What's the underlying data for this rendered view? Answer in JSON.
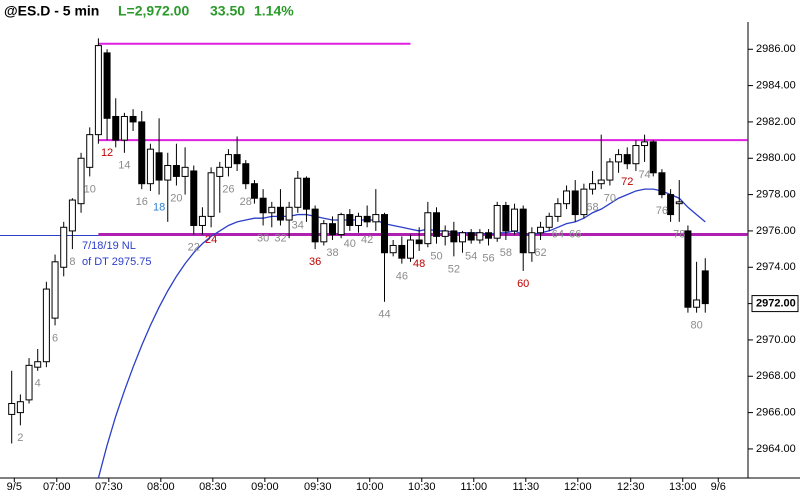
{
  "chart_data": {
    "type": "candlestick",
    "header": {
      "symbol": "@ES.D - 5 min",
      "last": "L=2,972.00",
      "change": "33.50",
      "change_pct": "1.14%"
    },
    "x": [
      1,
      2,
      3,
      4,
      5,
      6,
      7,
      8,
      9,
      10,
      11,
      12,
      13,
      14,
      15,
      16,
      17,
      18,
      19,
      20,
      21,
      22,
      23,
      24,
      25,
      26,
      27,
      28,
      29,
      30,
      31,
      32,
      33,
      34,
      35,
      36,
      37,
      38,
      39,
      40,
      41,
      42,
      43,
      44,
      45,
      46,
      47,
      48,
      49,
      50,
      51,
      52,
      53,
      54,
      55,
      56,
      57,
      58,
      59,
      60,
      61,
      62,
      63,
      64,
      65,
      66,
      67,
      68,
      69,
      70,
      71,
      72,
      73,
      74,
      75,
      76,
      77,
      78,
      79,
      80,
      81
    ],
    "open": [
      2965.9,
      2966.0,
      2966.7,
      2968.5,
      2968.8,
      2971.2,
      2974.0,
      2976.0,
      2977.5,
      2979.5,
      2981.3,
      2985.8,
      2982.3,
      2981.0,
      2982.3,
      2982.0,
      2978.6,
      2980.3,
      2978.8,
      2979.6,
      2979.0,
      2979.3,
      2976.3,
      2976.8,
      2979.0,
      2979.5,
      2980.2,
      2979.7,
      2978.6,
      2977.8,
      2977.0,
      2977.3,
      2976.6,
      2977.3,
      2978.9,
      2977.2,
      2975.4,
      2976.4,
      2975.8,
      2976.9,
      2976.3,
      2976.8,
      2976.5,
      2976.9,
      2974.8,
      2975.2,
      2974.5,
      2975.5,
      2975.3,
      2977.0,
      2975.7,
      2976.0,
      2975.4,
      2975.9,
      2975.5,
      2975.9,
      2975.6,
      2977.4,
      2976.0,
      2977.2,
      2974.8,
      2975.9,
      2976.2,
      2976.8,
      2977.5,
      2978.2,
      2976.9,
      2978.3,
      2978.6,
      2978.8,
      2979.8,
      2980.2,
      2979.7,
      2980.7,
      2980.9,
      2979.2,
      2978.0,
      2977.5,
      2976.0,
      2971.8,
      2973.8
    ],
    "high": [
      2968.3,
      2967.0,
      2969.0,
      2969.5,
      2973.2,
      2974.7,
      2976.5,
      2977.8,
      2980.3,
      2981.7,
      2986.6,
      2986.0,
      2983.3,
      2982.5,
      2982.7,
      2982.6,
      2980.8,
      2982.2,
      2980.3,
      2980.8,
      2980.6,
      2979.6,
      2977.3,
      2979.5,
      2979.8,
      2980.5,
      2981.2,
      2979.9,
      2978.8,
      2978.3,
      2977.6,
      2978.3,
      2977.6,
      2979.3,
      2979.0,
      2977.4,
      2976.6,
      2976.8,
      2977.0,
      2977.2,
      2977.0,
      2977.4,
      2978.3,
      2977.0,
      2975.5,
      2975.7,
      2975.8,
      2976.2,
      2977.6,
      2977.3,
      2976.3,
      2976.5,
      2976.0,
      2976.1,
      2976.1,
      2976.1,
      2977.6,
      2977.6,
      2977.5,
      2977.4,
      2976.2,
      2976.5,
      2977.0,
      2977.8,
      2978.5,
      2978.8,
      2978.6,
      2979.3,
      2981.3,
      2980.0,
      2980.5,
      2980.6,
      2981.0,
      2981.3,
      2981.0,
      2979.4,
      2978.3,
      2978.8,
      2976.3,
      2974.3,
      2974.5
    ],
    "low": [
      2964.3,
      2965.3,
      2966.5,
      2968.3,
      2968.5,
      2970.8,
      2973.5,
      2975.0,
      2977.0,
      2979.0,
      2980.8,
      2981.0,
      2980.6,
      2980.3,
      2981.5,
      2978.3,
      2978.2,
      2978.0,
      2976.5,
      2978.5,
      2978.0,
      2975.8,
      2975.8,
      2976.2,
      2977.0,
      2979.0,
      2979.3,
      2978.3,
      2977.5,
      2976.3,
      2976.2,
      2976.3,
      2975.6,
      2977.0,
      2976.5,
      2975.0,
      2975.2,
      2975.5,
      2975.6,
      2976.0,
      2975.9,
      2976.2,
      2976.0,
      2972.1,
      2974.6,
      2974.2,
      2974.3,
      2974.9,
      2975.1,
      2975.3,
      2975.2,
      2974.6,
      2974.8,
      2975.3,
      2975.3,
      2975.2,
      2975.4,
      2975.5,
      2975.8,
      2973.8,
      2974.3,
      2975.5,
      2976.0,
      2976.5,
      2977.2,
      2976.5,
      2976.7,
      2978.0,
      2978.3,
      2978.5,
      2979.2,
      2979.4,
      2979.3,
      2979.8,
      2979.0,
      2977.8,
      2976.5,
      2976.5,
      2971.5,
      2971.5,
      2971.5
    ],
    "close": [
      2966.5,
      2966.6,
      2968.6,
      2968.8,
      2972.8,
      2974.3,
      2976.2,
      2977.7,
      2980.0,
      2981.3,
      2986.2,
      2982.2,
      2981.0,
      2982.3,
      2982.0,
      2978.6,
      2980.5,
      2978.8,
      2979.6,
      2979.0,
      2979.5,
      2976.3,
      2976.8,
      2979.2,
      2979.5,
      2980.2,
      2979.7,
      2978.6,
      2977.8,
      2977.0,
      2977.3,
      2976.6,
      2977.3,
      2978.9,
      2977.2,
      2975.4,
      2976.4,
      2975.8,
      2976.9,
      2976.3,
      2976.8,
      2976.5,
      2976.9,
      2974.8,
      2975.2,
      2974.5,
      2975.5,
      2975.3,
      2977.0,
      2975.7,
      2976.0,
      2975.4,
      2975.9,
      2975.5,
      2975.9,
      2975.6,
      2977.4,
      2976.0,
      2977.2,
      2974.8,
      2975.9,
      2976.2,
      2976.8,
      2977.5,
      2978.2,
      2976.9,
      2978.3,
      2978.6,
      2978.8,
      2979.8,
      2980.2,
      2979.7,
      2980.7,
      2980.9,
      2979.2,
      2978.0,
      2976.9,
      2977.6,
      2971.8,
      2972.2,
      2972.0
    ],
    "ema": {
      "color": "#2b3fc8",
      "values": [
        null,
        null,
        null,
        null,
        null,
        null,
        null,
        null,
        null,
        null,
        2962.4,
        2964.2,
        2965.8,
        2967.2,
        2968.5,
        2969.7,
        2970.8,
        2971.8,
        2972.7,
        2973.5,
        2974.2,
        2974.8,
        2975.3,
        2975.7,
        2976.0,
        2976.3,
        2976.5,
        2976.6,
        2976.7,
        2976.7,
        2976.8,
        2976.8,
        2976.8,
        2976.9,
        2976.9,
        2976.8,
        2976.7,
        2976.6,
        2976.6,
        2976.6,
        2976.6,
        2976.6,
        2976.6,
        2976.4,
        2976.3,
        2976.2,
        2976.1,
        2976.0,
        2976.1,
        2976.0,
        2976.0,
        2975.9,
        2975.9,
        2975.9,
        2975.9,
        2975.8,
        2975.9,
        2975.9,
        2976.0,
        2975.8,
        2975.8,
        2975.9,
        2976.0,
        2976.2,
        2976.4,
        2976.5,
        2976.7,
        2977.0,
        2977.2,
        2977.5,
        2977.8,
        2978.0,
        2978.2,
        2978.3,
        2978.3,
        2978.2,
        2978.0,
        2977.8,
        2977.3,
        2976.9,
        2976.5
      ]
    },
    "levels": [
      {
        "value": 2986.3,
        "x": [
          11,
          47
        ],
        "color": "#e020e0",
        "width": 2
      },
      {
        "value": 2981.0,
        "x": [
          11,
          85.9
        ],
        "color": "#e020e0",
        "width": 2
      },
      {
        "value": 2975.75,
        "color": "#2b3fc8",
        "width": 1
      },
      {
        "value": 2975.8,
        "x": [
          11,
          85.9
        ],
        "color": "#b020b0",
        "width": 3
      }
    ],
    "annotation": {
      "lines": [
        "7/18/19 NL",
        "of DT 2975.75"
      ],
      "color": "#2b3fc8"
    },
    "bar_labels": {
      "values": [
        2,
        4,
        6,
        8,
        10,
        12,
        14,
        16,
        18,
        20,
        22,
        24,
        26,
        28,
        30,
        32,
        34,
        36,
        38,
        40,
        42,
        44,
        46,
        48,
        50,
        52,
        54,
        56,
        58,
        60,
        62,
        64,
        66,
        68,
        70,
        72,
        74,
        76,
        78,
        80
      ],
      "colors": [
        "#8c8c8c",
        "#8c8c8c",
        "#8c8c8c",
        "#8c8c8c",
        "#8c8c8c",
        "#c00000",
        "#8c8c8c",
        "#8c8c8c",
        "#2f7fd0",
        "#8c8c8c",
        "#8c8c8c",
        "#c00000",
        "#8c8c8c",
        "#8c8c8c",
        "#8c8c8c",
        "#8c8c8c",
        "#8c8c8c",
        "#c00000",
        "#8c8c8c",
        "#8c8c8c",
        "#8c8c8c",
        "#8c8c8c",
        "#8c8c8c",
        "#c00000",
        "#8c8c8c",
        "#8c8c8c",
        "#8c8c8c",
        "#8c8c8c",
        "#8c8c8c",
        "#c00000",
        "#8c8c8c",
        "#8c8c8c",
        "#8c8c8c",
        "#8c8c8c",
        "#8c8c8c",
        "#c00000",
        "#8c8c8c",
        "#8c8c8c",
        "#8c8c8c",
        "#8c8c8c"
      ]
    },
    "last_price": {
      "value": 2972,
      "label": "2972.00"
    },
    "xlim": [
      -0.35,
      85.93
    ],
    "ylim": [
      2962.4,
      2987.5
    ],
    "xticks": [
      {
        "value": 1.3,
        "label": "9/5"
      },
      {
        "value": 6.2,
        "label": "07:00"
      },
      {
        "value": 12.2,
        "label": "07:30"
      },
      {
        "value": 18.2,
        "label": "08:00"
      },
      {
        "value": 24.2,
        "label": "08:30"
      },
      {
        "value": 30.2,
        "label": "09:00"
      },
      {
        "value": 36.3,
        "label": "09:30"
      },
      {
        "value": 42.3,
        "label": "10:00"
      },
      {
        "value": 48.3,
        "label": "10:30"
      },
      {
        "value": 54.3,
        "label": "11:00"
      },
      {
        "value": 60.3,
        "label": "11:30"
      },
      {
        "value": 66.3,
        "label": "12:00"
      },
      {
        "value": 72.4,
        "label": "12:30"
      },
      {
        "value": 78.4,
        "label": "13:00"
      },
      {
        "value": 82.5,
        "label": "9/6"
      }
    ],
    "yticks": [
      {
        "value": 2964,
        "label": "2964.00"
      },
      {
        "value": 2966,
        "label": "2966.00"
      },
      {
        "value": 2968,
        "label": "2968.00"
      },
      {
        "value": 2970,
        "label": "2970.00"
      },
      {
        "value": 2972,
        "label": "2972.00"
      },
      {
        "value": 2974,
        "label": "2974.00"
      },
      {
        "value": 2976,
        "label": "2976.00"
      },
      {
        "value": 2978,
        "label": "2978.00"
      },
      {
        "value": 2980,
        "label": "2980.00"
      },
      {
        "value": 2982,
        "label": "2982.00"
      },
      {
        "value": 2984,
        "label": "2984.00"
      },
      {
        "value": 2986,
        "label": "2986.00"
      }
    ]
  }
}
